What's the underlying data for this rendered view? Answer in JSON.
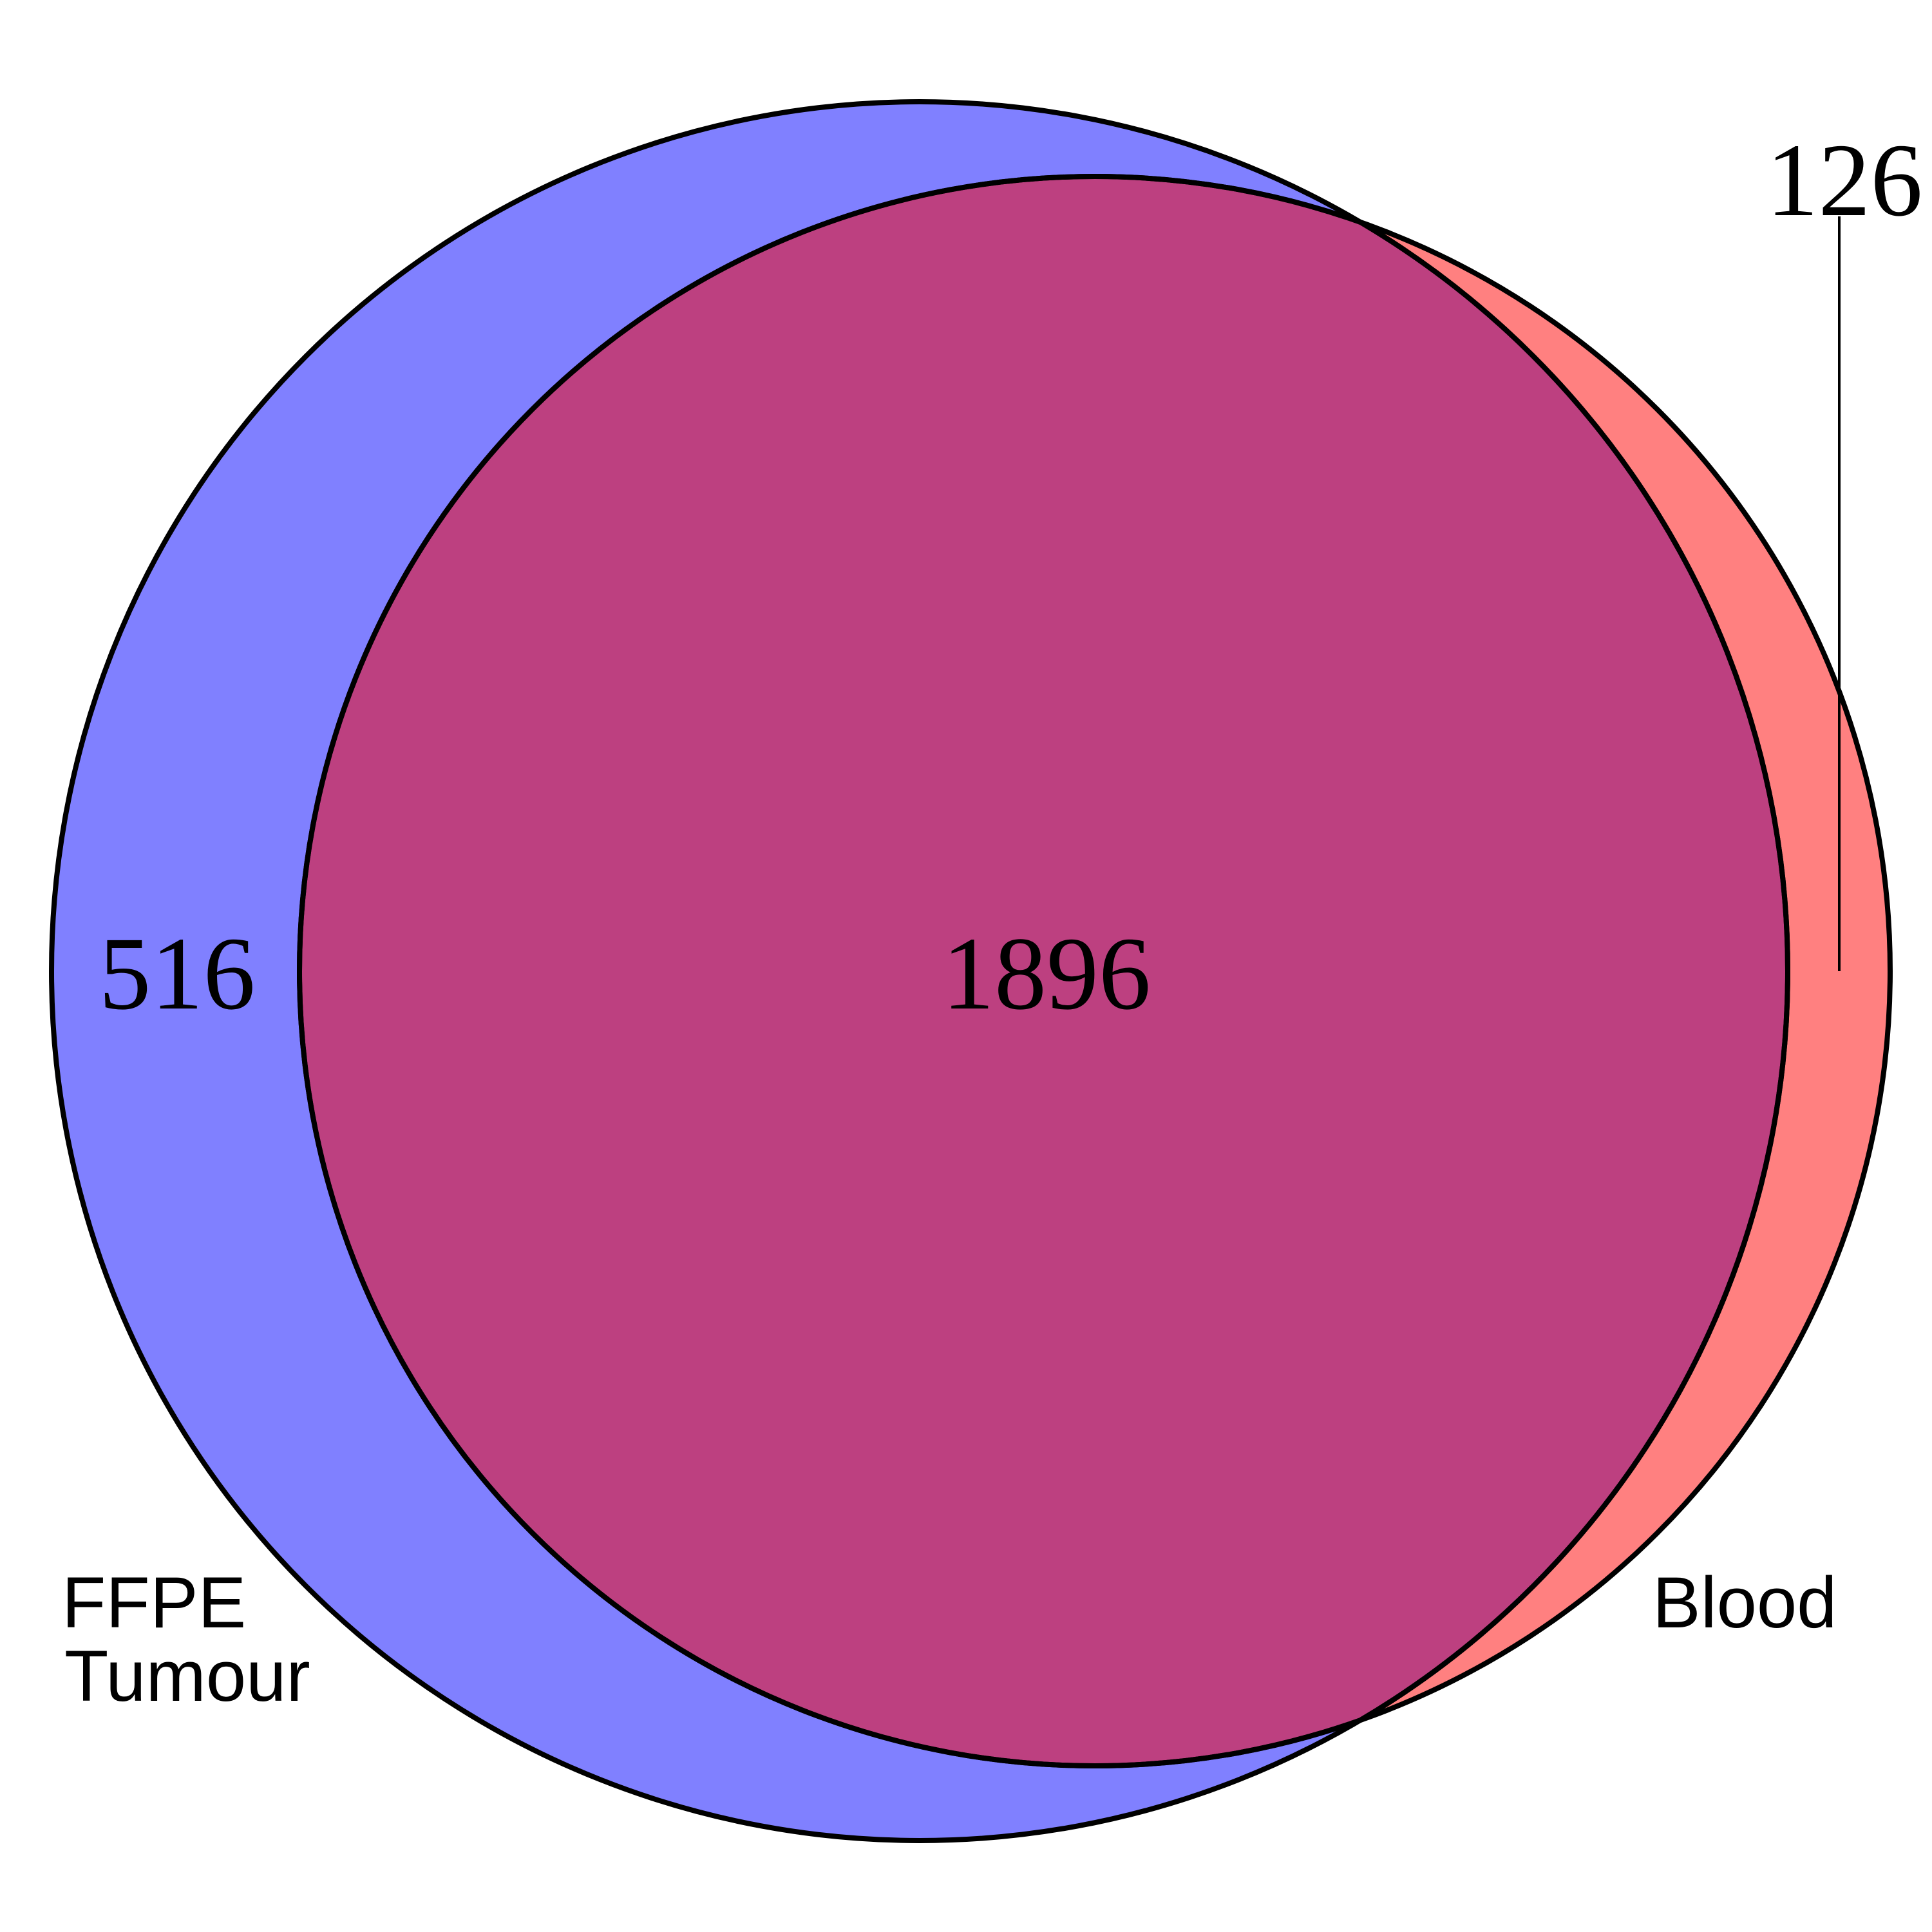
{
  "sets": [
    {
      "id": "ffpe",
      "label_lines": [
        "FFPE",
        "Tumour"
      ],
      "fill": "#8080ff"
    },
    {
      "id": "blood",
      "label_lines": [
        "Blood"
      ],
      "fill": "#ff8080"
    }
  ],
  "regions": {
    "ffpe_only": "516",
    "intersection": "1896",
    "blood_only": "126"
  },
  "overlap_fill": "#bd4080",
  "outline_color": "#000000"
}
